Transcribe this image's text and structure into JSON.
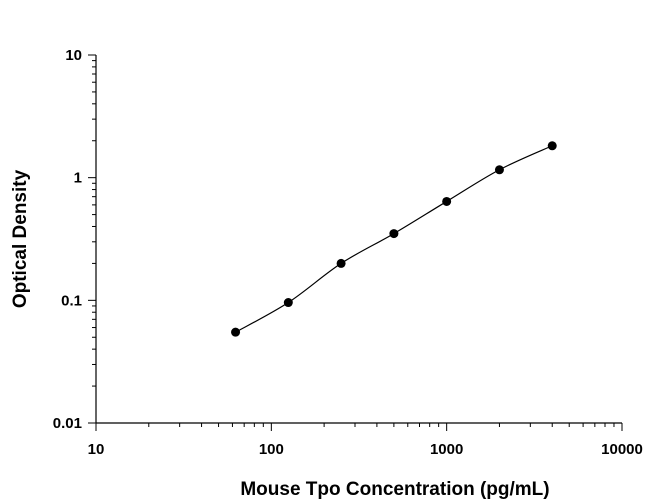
{
  "chart_data": {
    "type": "scatter",
    "title": "",
    "xlabel": "Mouse Tpo Concentration (pg/mL)",
    "ylabel": "Optical Density",
    "x_scale": "log",
    "y_scale": "log",
    "xlim": [
      10,
      10000
    ],
    "ylim": [
      0.01,
      10
    ],
    "x_tick_labels": [
      "10",
      "100",
      "1000",
      "10000"
    ],
    "y_tick_labels": [
      "0.01",
      "0.1",
      "1",
      "10"
    ],
    "grid": false,
    "legend": "none",
    "fit_curve": true,
    "series": [
      {
        "x": [
          62.5,
          125,
          250,
          500,
          1000,
          2000,
          4000
        ],
        "y": [
          0.055,
          0.096,
          0.2,
          0.35,
          0.64,
          1.16,
          1.82
        ]
      }
    ],
    "marker_color": "#000000"
  }
}
